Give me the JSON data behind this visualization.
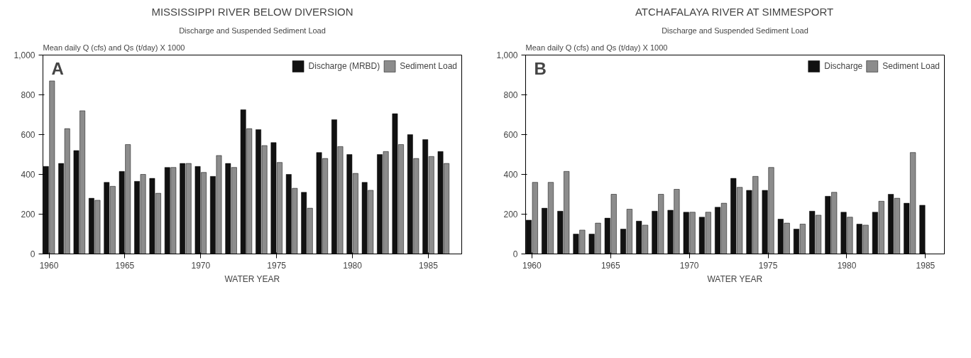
{
  "chart_data": [
    {
      "type": "bar",
      "title": "MISSISSIPPI RIVER BELOW DIVERSION",
      "subtitle": "Discharge and Suspended Sediment Load",
      "xlabel": "WATER YEAR",
      "ylabel": "Mean daily Q (cfs) and Qs (t/day) X 1000",
      "annotations": [
        "A"
      ],
      "x": [
        1960,
        1961,
        1962,
        1963,
        1964,
        1965,
        1966,
        1967,
        1968,
        1969,
        1970,
        1971,
        1972,
        1973,
        1974,
        1975,
        1976,
        1977,
        1978,
        1979,
        1980,
        1981,
        1982,
        1983,
        1984,
        1985,
        1986
      ],
      "series": [
        {
          "name": "Discharge (MRBD)",
          "color": "#111111",
          "values": [
            440,
            455,
            520,
            280,
            360,
            415,
            365,
            380,
            435,
            455,
            440,
            390,
            455,
            725,
            625,
            560,
            400,
            310,
            510,
            675,
            500,
            360,
            500,
            705,
            600,
            575,
            515
          ]
        },
        {
          "name": "Sediment Load",
          "color": "#8c8c8c",
          "values": [
            870,
            630,
            720,
            270,
            340,
            550,
            400,
            305,
            435,
            455,
            410,
            495,
            435,
            630,
            545,
            460,
            330,
            230,
            480,
            540,
            405,
            320,
            515,
            550,
            480,
            490,
            455
          ]
        }
      ],
      "xlim": [
        1959.6,
        1987.2
      ],
      "xticks": [
        1960,
        1965,
        1970,
        1975,
        1980,
        1985
      ],
      "ylim": [
        0,
        1000
      ],
      "yticks": [
        0,
        200,
        400,
        600,
        800,
        {
          "value": 1000,
          "label": "1,000"
        }
      ],
      "grid": false,
      "legend": "top right"
    },
    {
      "type": "bar",
      "title": "ATCHAFALAYA RIVER AT SIMMESPORT",
      "subtitle": "Discharge and Suspended Sediment Load",
      "xlabel": "WATER YEAR",
      "ylabel": "Mean daily Q (cfs) and Qs (t/day) X 1000",
      "annotations": [
        "B"
      ],
      "x": [
        1960,
        1961,
        1962,
        1963,
        1964,
        1965,
        1966,
        1967,
        1968,
        1969,
        1970,
        1971,
        1972,
        1973,
        1974,
        1975,
        1976,
        1977,
        1978,
        1979,
        1980,
        1981,
        1982,
        1983,
        1984,
        1985
      ],
      "series": [
        {
          "name": "Discharge",
          "color": "#111111",
          "values": [
            170,
            230,
            215,
            100,
            100,
            180,
            125,
            165,
            215,
            220,
            210,
            185,
            235,
            380,
            320,
            320,
            175,
            125,
            215,
            290,
            210,
            150,
            210,
            300,
            255,
            245
          ]
        },
        {
          "name": "Sediment Load",
          "color": "#8c8c8c",
          "values": [
            360,
            360,
            415,
            120,
            155,
            300,
            225,
            145,
            300,
            325,
            210,
            210,
            255,
            335,
            390,
            435,
            155,
            150,
            195,
            310,
            185,
            145,
            265,
            280,
            510,
            null
          ]
        }
      ],
      "xlim": [
        1959.6,
        1986.2
      ],
      "xticks": [
        1960,
        1965,
        1970,
        1975,
        1980,
        1985
      ],
      "ylim": [
        0,
        1000
      ],
      "yticks": [
        0,
        200,
        400,
        600,
        800,
        {
          "value": 1000,
          "label": "1,000"
        }
      ],
      "grid": false,
      "legend": "top right"
    }
  ]
}
